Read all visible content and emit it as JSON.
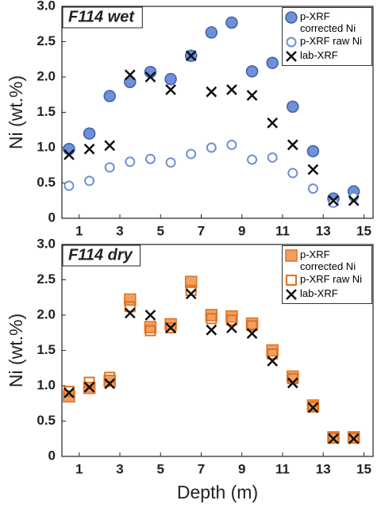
{
  "chart_data": [
    {
      "type": "scatter",
      "title": "F114 wet",
      "y_label": "Ni (wt.%)",
      "x": [
        0.5,
        1.5,
        2.5,
        3.5,
        4.5,
        5.5,
        6.5,
        7.5,
        8.5,
        9.5,
        10.5,
        11.5,
        12.5,
        13.5,
        14.5
      ],
      "xlim": [
        0.15,
        15.45
      ],
      "xticks": [
        1,
        3,
        5,
        7,
        9,
        11,
        13,
        15
      ],
      "ylim": [
        0,
        3
      ],
      "yticks": [
        0,
        0.5,
        {
          "value": 1,
          "label": "1.0"
        },
        1.5,
        {
          "value": 2,
          "label": "2.0"
        },
        2.5,
        {
          "value": 3,
          "label": "3.0"
        }
      ],
      "series": [
        {
          "name": "p-XRF corrected Ni",
          "color": "#6f8fd6",
          "marker": "filled-circle",
          "values": [
            0.98,
            1.2,
            1.73,
            1.93,
            2.07,
            1.97,
            2.3,
            2.63,
            2.77,
            2.08,
            2.2,
            1.58,
            0.95,
            0.28,
            0.38
          ]
        },
        {
          "name": "p-XRF raw Ni",
          "color": "#6f8fd6",
          "marker": "open-circle",
          "values": [
            0.46,
            0.53,
            0.72,
            0.8,
            0.84,
            0.79,
            0.91,
            1.0,
            1.04,
            0.83,
            0.86,
            0.64,
            0.42,
            0.22,
            0.3
          ]
        },
        {
          "name": "lab-XRF",
          "color": "#111111",
          "marker": "cross",
          "values": [
            0.9,
            0.98,
            1.03,
            2.03,
            2.0,
            1.82,
            2.3,
            1.79,
            1.82,
            1.74,
            1.35,
            1.04,
            0.69,
            0.25,
            0.25
          ]
        }
      ]
    },
    {
      "type": "scatter",
      "title": "F114 dry",
      "y_label": "Ni (wt.%)",
      "x_label": "Depth (m)",
      "x": [
        0.5,
        1.5,
        2.5,
        3.5,
        4.5,
        5.5,
        6.5,
        7.5,
        8.5,
        9.5,
        10.5,
        11.5,
        12.5,
        13.5,
        14.5
      ],
      "xlim": [
        0.15,
        15.45
      ],
      "xticks": [
        1,
        3,
        5,
        7,
        9,
        11,
        13,
        15
      ],
      "ylim": [
        0,
        3
      ],
      "yticks": [
        0,
        0.5,
        {
          "value": 1,
          "label": "1.0"
        },
        1.5,
        {
          "value": 2,
          "label": "2.0"
        },
        2.5,
        {
          "value": 3,
          "label": "3.0"
        }
      ],
      "series": [
        {
          "name": "p-XRF corrected Ni",
          "color": "#f0a060",
          "marker": "filled-square",
          "values": [
            0.85,
            0.97,
            1.07,
            2.22,
            1.83,
            1.87,
            2.47,
            2.0,
            1.98,
            1.88,
            1.5,
            1.13,
            0.72,
            0.27,
            0.27
          ]
        },
        {
          "name": "p-XRF raw Ni",
          "color": "#f0a060",
          "marker": "open-square",
          "values": [
            0.92,
            1.05,
            1.12,
            2.12,
            1.78,
            1.82,
            2.35,
            1.95,
            1.93,
            1.85,
            1.45,
            1.1,
            0.7,
            0.26,
            0.26
          ]
        },
        {
          "name": "lab-XRF",
          "color": "#111111",
          "marker": "cross",
          "values": [
            0.9,
            0.98,
            1.03,
            2.03,
            2.0,
            1.82,
            2.3,
            1.79,
            1.82,
            1.74,
            1.35,
            1.04,
            0.69,
            0.25,
            0.25
          ]
        }
      ]
    }
  ]
}
